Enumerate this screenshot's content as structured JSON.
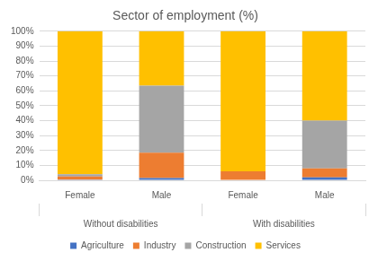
{
  "chart_data": {
    "type": "bar",
    "title": "Sector of employment (%)",
    "categories": [
      "Female",
      "Male",
      "Female",
      "Male"
    ],
    "groups": [
      "Without disabilities",
      "With disabilities"
    ],
    "series": [
      {
        "name": "Agriculture",
        "color": "#4472c4",
        "values": [
          0.5,
          1.5,
          0,
          2
        ]
      },
      {
        "name": "Industry",
        "color": "#ed7d31",
        "values": [
          2,
          17,
          6,
          6
        ]
      },
      {
        "name": "Construction",
        "color": "#a5a5a5",
        "values": [
          1.5,
          45,
          0,
          32
        ]
      },
      {
        "name": "Services",
        "color": "#ffc000",
        "values": [
          96,
          36.5,
          94,
          60
        ]
      }
    ],
    "ylim": [
      0,
      100
    ],
    "yticks": [
      {
        "value": 0,
        "label": "0%"
      },
      {
        "value": 10,
        "label": "10%"
      },
      {
        "value": 20,
        "label": "20%"
      },
      {
        "value": 30,
        "label": "30%"
      },
      {
        "value": 40,
        "label": "40%"
      },
      {
        "value": 50,
        "label": "50%"
      },
      {
        "value": 60,
        "label": "60%"
      },
      {
        "value": 70,
        "label": "70%"
      },
      {
        "value": 80,
        "label": "80%"
      },
      {
        "value": 90,
        "label": "90%"
      },
      {
        "value": 100,
        "label": "100%"
      }
    ],
    "stacked": true,
    "grid": true,
    "legend": "bottom"
  }
}
